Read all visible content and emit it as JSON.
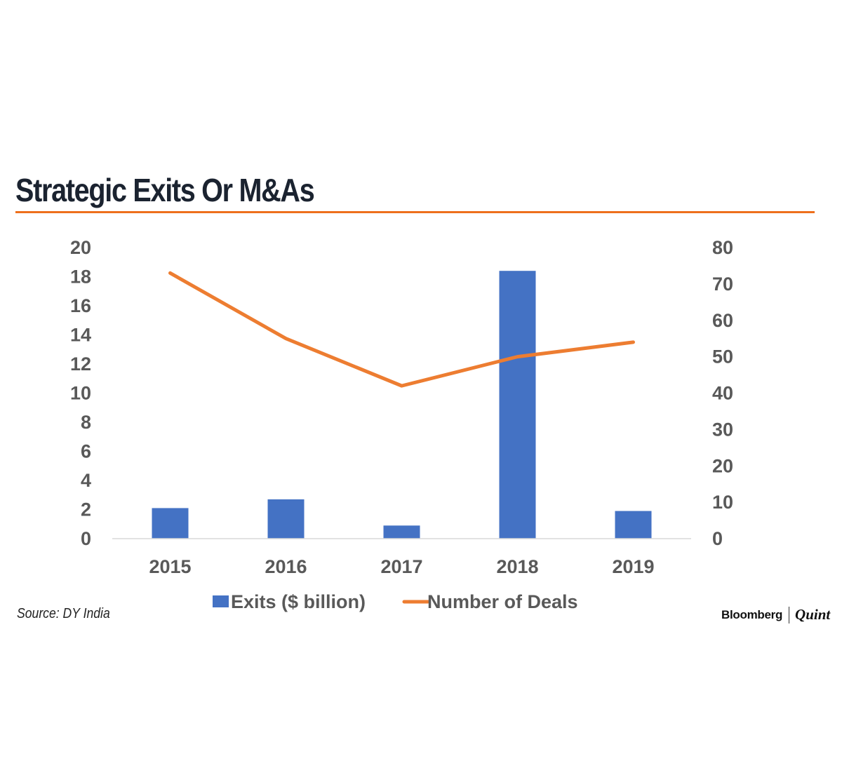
{
  "header": {
    "title": "Strategic Exits Or M&As",
    "rule_color": "#ee6f1c"
  },
  "footer": {
    "source": "Source: DY India",
    "brand_left": "Bloomberg",
    "brand_right": "Quint"
  },
  "chart_data": {
    "type": "bar",
    "title": "Strategic Exits Or M&As",
    "categories": [
      "2015",
      "2016",
      "2017",
      "2018",
      "2019"
    ],
    "series": [
      {
        "name": "Exits ($ billion)",
        "type": "bar",
        "axis": "left",
        "values": [
          2.1,
          2.7,
          0.9,
          18.4,
          1.9
        ],
        "color": "#4472c4"
      },
      {
        "name": "Number of Deals",
        "type": "line",
        "axis": "right",
        "values": [
          73,
          55,
          42,
          50,
          54
        ],
        "color": "#ed7d31"
      }
    ],
    "y_left": {
      "min": 0,
      "max": 20,
      "ticks": [
        "0",
        "2",
        "4",
        "6",
        "8",
        "10",
        "12",
        "14",
        "16",
        "18",
        "20"
      ]
    },
    "y_right": {
      "min": 0,
      "max": 80,
      "ticks": [
        "0",
        "10",
        "20",
        "30",
        "40",
        "50",
        "60",
        "70",
        "80"
      ]
    },
    "grid": false,
    "legend": "bottom"
  }
}
